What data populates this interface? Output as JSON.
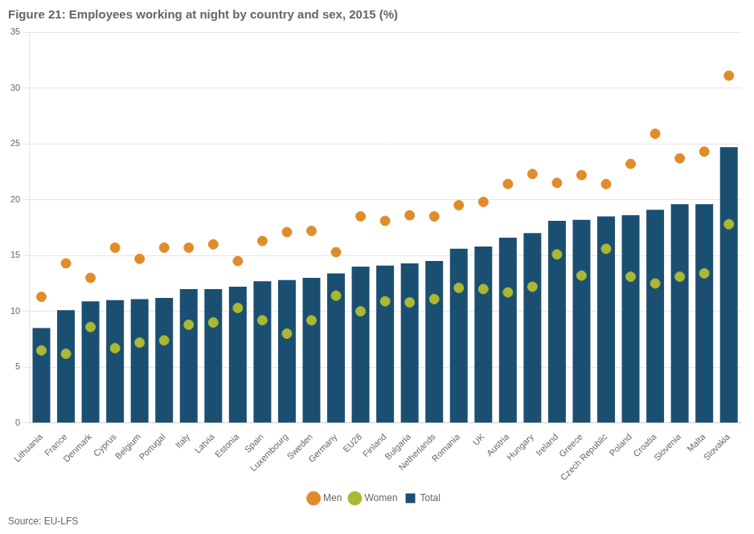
{
  "chart_data": {
    "type": "bar",
    "title": "Figure 21: Employees working at night by country and sex, 2015 (%)",
    "annotations": [
      "Source: EU-LFS"
    ],
    "categories": [
      "Lithuania",
      "France",
      "Denmark",
      "Cyprus",
      "Belgium",
      "Portugal",
      "Italy",
      "Latvia",
      "Estonia",
      "Spain",
      "Luxembourg",
      "Sweden",
      "Germany",
      "EU28",
      "Finland",
      "Bulgaria",
      "Netherlands",
      "Romania",
      "UK",
      "Austria",
      "Hungary",
      "Ireland",
      "Greece",
      "Czech Republic",
      "Poland",
      "Croatia",
      "Slovenia",
      "Malta",
      "Slovakia"
    ],
    "series": [
      {
        "name": "Total",
        "type": "bar",
        "color": "#1b4f72",
        "values": [
          8.5,
          10.1,
          10.9,
          11.0,
          11.1,
          11.2,
          12.0,
          12.0,
          12.2,
          12.7,
          12.8,
          13.0,
          13.4,
          14.0,
          14.1,
          14.3,
          14.5,
          15.6,
          15.8,
          16.6,
          17.0,
          18.1,
          18.2,
          18.5,
          18.6,
          19.1,
          19.6,
          19.6,
          24.7
        ]
      },
      {
        "name": "Men",
        "type": "scatter",
        "marker": "circle",
        "color": "#e08c2a",
        "values": [
          11.3,
          14.3,
          13.0,
          15.7,
          14.7,
          15.7,
          15.7,
          16.0,
          14.5,
          16.3,
          17.1,
          17.2,
          15.3,
          18.5,
          18.1,
          18.6,
          18.5,
          19.5,
          19.8,
          21.4,
          22.3,
          21.5,
          22.2,
          21.4,
          23.2,
          25.9,
          23.7,
          24.3,
          31.1
        ]
      },
      {
        "name": "Women",
        "type": "scatter",
        "marker": "circle",
        "color": "#aab832",
        "values": [
          6.5,
          6.2,
          8.6,
          6.7,
          7.2,
          7.4,
          8.8,
          9.0,
          10.3,
          9.2,
          8.0,
          9.2,
          11.4,
          10.0,
          10.9,
          10.8,
          11.1,
          12.1,
          12.0,
          11.7,
          12.2,
          15.1,
          13.2,
          15.6,
          13.1,
          12.5,
          13.1,
          13.4,
          17.8
        ]
      }
    ],
    "ylim": [
      0,
      35
    ],
    "yticks": [
      0,
      5,
      10,
      15,
      20,
      25,
      30,
      35
    ],
    "grid": true,
    "legend": "bottom"
  }
}
